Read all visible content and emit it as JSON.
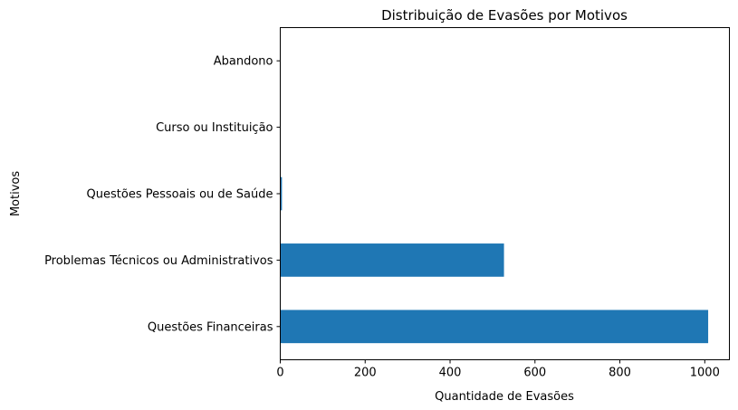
{
  "chart_data": {
    "type": "bar",
    "orientation": "horizontal",
    "title": "Distribuição de Evasões por Motivos",
    "xlabel": "Quantidade de Evasões",
    "ylabel": "Motivos",
    "categories": [
      "Questões Financeiras",
      "Problemas Técnicos ou Administrativos",
      "Questões Pessoais ou de Saúde",
      "Curso ou Instituição",
      "Abandono"
    ],
    "values": [
      1008,
      527,
      4,
      1,
      1
    ],
    "xlim": [
      0,
      1058
    ],
    "xticks": [
      "0",
      "200",
      "400",
      "600",
      "800",
      "1000"
    ],
    "grid": false,
    "bar_color": "#1f77b4"
  }
}
